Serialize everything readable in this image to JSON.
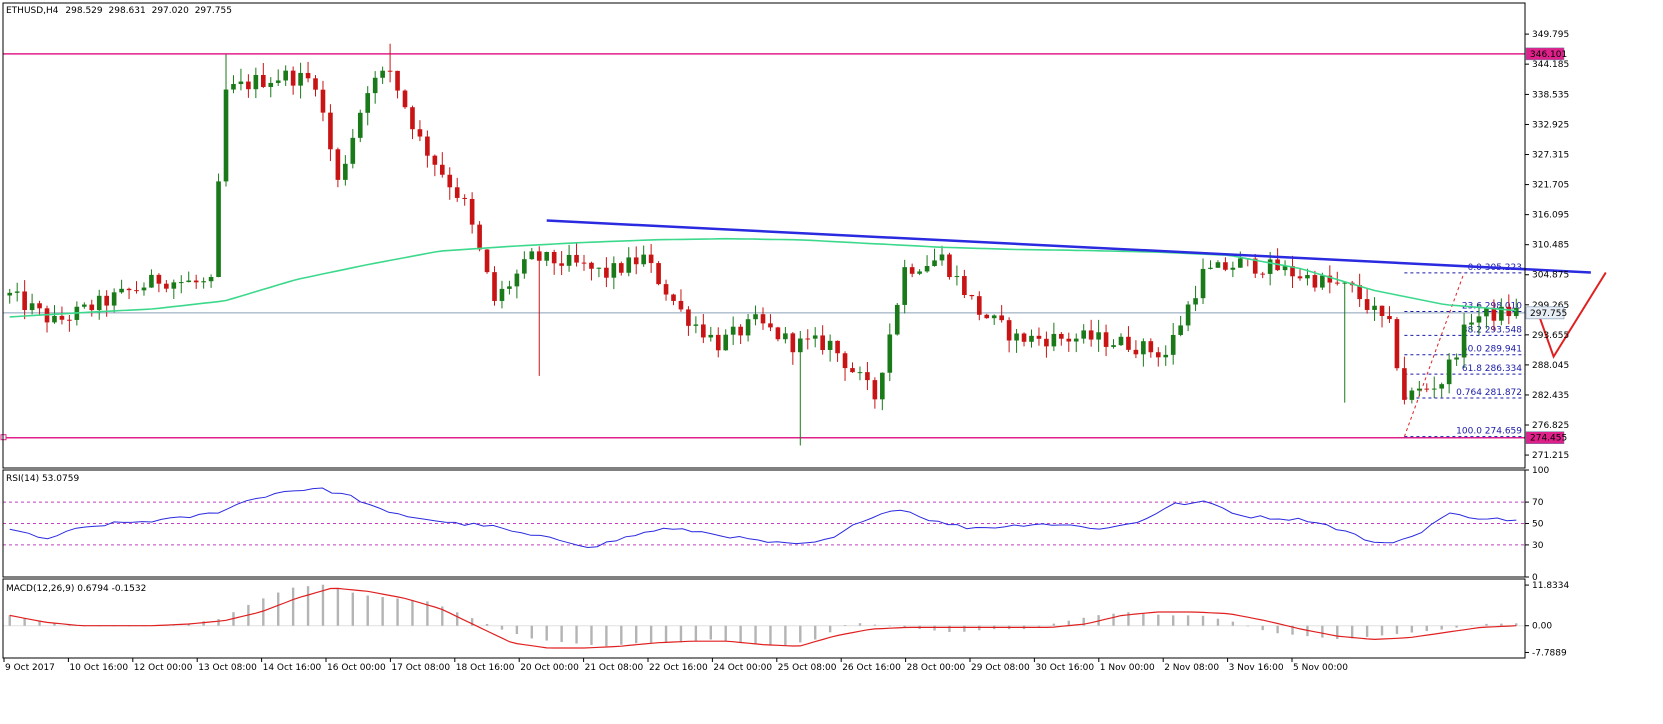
{
  "chart_data": [
    {
      "type": "candlestick",
      "title": "ETHUSD,H4",
      "ohlc_header": [
        "298.529",
        "298.631",
        "297.020",
        "297.755"
      ],
      "y_ticks": [
        "349.795",
        "344.185",
        "338.535",
        "332.925",
        "327.315",
        "321.705",
        "316.095",
        "310.485",
        "304.875",
        "299.265",
        "293.655",
        "288.045",
        "282.435",
        "276.825",
        "271.215"
      ],
      "ylim": [
        268.8,
        355.6
      ],
      "current_price": "297.755",
      "resistance_level": "346.101",
      "support_level": "274.455",
      "x_ticks": [
        "9 Oct 2017",
        "10 Oct 16:00",
        "12 Oct 00:00",
        "13 Oct 08:00",
        "14 Oct 16:00",
        "16 Oct 00:00",
        "17 Oct 08:00",
        "18 Oct 16:00",
        "20 Oct 00:00",
        "21 Oct 08:00",
        "22 Oct 16:00",
        "24 Oct 00:00",
        "25 Oct 08:00",
        "26 Oct 16:00",
        "28 Oct 00:00",
        "29 Oct 08:00",
        "30 Oct 16:00",
        "1 Nov 00:00",
        "2 Nov 08:00",
        "3 Nov 16:00",
        "5 Nov 00:00"
      ],
      "bar_count": 203,
      "close_anchors": [
        [
          0,
          301
        ],
        [
          6,
          296
        ],
        [
          13,
          300
        ],
        [
          20,
          304
        ],
        [
          27,
          303
        ],
        [
          29,
          339
        ],
        [
          33,
          341
        ],
        [
          37,
          342
        ],
        [
          41,
          341
        ],
        [
          44,
          322
        ],
        [
          48,
          340
        ],
        [
          51,
          343
        ],
        [
          55,
          330
        ],
        [
          58,
          324
        ],
        [
          61,
          318
        ],
        [
          65,
          300
        ],
        [
          70,
          308
        ],
        [
          75,
          307
        ],
        [
          80,
          305
        ],
        [
          85,
          308
        ],
        [
          90,
          298
        ],
        [
          95,
          292
        ],
        [
          100,
          296
        ],
        [
          105,
          292
        ],
        [
          110,
          292
        ],
        [
          116,
          282
        ],
        [
          120,
          306
        ],
        [
          125,
          308
        ],
        [
          130,
          298
        ],
        [
          135,
          293
        ],
        [
          140,
          293
        ],
        [
          145,
          293
        ],
        [
          150,
          292
        ],
        [
          155,
          290
        ],
        [
          160,
          305
        ],
        [
          165,
          307
        ],
        [
          170,
          306
        ],
        [
          175,
          304
        ],
        [
          180,
          302
        ],
        [
          185,
          295
        ],
        [
          187,
          282
        ],
        [
          192,
          285
        ],
        [
          196,
          297
        ],
        [
          202,
          298
        ]
      ],
      "extreme_bars": [
        [
          29,
          346
        ],
        [
          51,
          348
        ],
        [
          71,
          286
        ],
        [
          106,
          273
        ],
        [
          179,
          281
        ]
      ],
      "ma_values": [
        297.0,
        297.8,
        298.5,
        300.0,
        304.0,
        306.8,
        309.3,
        310.2,
        310.9,
        311.4,
        311.6,
        311.4,
        310.7,
        310.0,
        309.6,
        309.4,
        309.1,
        308.5,
        306.0,
        302.0,
        299.3,
        298.2
      ],
      "trendline": {
        "from": [
          72,
          315.0
        ],
        "to": [
          212,
          305.3
        ]
      },
      "fibonacci": [
        {
          "ratio": "0.0",
          "price": "305.223"
        },
        {
          "ratio": "23.6",
          "price": "298.010"
        },
        {
          "ratio": "38.2",
          "price": "293.548"
        },
        {
          "ratio": "50.0",
          "price": "289.941"
        },
        {
          "ratio": "61.8",
          "price": "286.334"
        },
        {
          "ratio": "0.764",
          "price": "281.872"
        },
        {
          "ratio": "100.0",
          "price": "274.659"
        }
      ],
      "projection": [
        [
          205,
          297.5
        ],
        [
          207,
          289.6
        ],
        [
          214,
          305.3
        ]
      ],
      "colors": {
        "bull": "#1a7a1a",
        "bear": "#c81414",
        "ma": "#3cd98c",
        "trend": "#2a2ae0",
        "level": "#e0208a",
        "fib": "#1a1aa8",
        "projection": "#e02020"
      }
    },
    {
      "type": "line",
      "title": "RSI(14) 53.0759",
      "y_ticks": [
        "100",
        "70",
        "50",
        "30",
        "0"
      ],
      "ylim": [
        0,
        100
      ],
      "levels": [
        70,
        50,
        30
      ],
      "rsi_values": [
        45,
        35,
        45,
        50,
        52,
        55,
        60,
        72,
        80,
        83,
        75,
        60,
        55,
        50,
        48,
        40,
        35,
        28,
        37,
        45,
        43,
        38,
        33,
        30,
        35,
        55,
        64,
        52,
        46,
        47,
        50,
        48,
        45,
        52,
        68,
        70,
        57,
        55,
        53,
        43,
        30,
        38,
        59,
        55,
        53
      ],
      "color": "#2a2ae0"
    },
    {
      "type": "bar",
      "title": "MACD(12,26,9) 0.6794 -0.1532",
      "y_ticks": [
        "11.8334",
        "0.00",
        "-7.7889"
      ],
      "ylim": [
        -9.4,
        13.6
      ],
      "hist_values": [
        3,
        1,
        0,
        0,
        0,
        0.5,
        2,
        7,
        11,
        12,
        9,
        8,
        7,
        3,
        -1,
        -4,
        -5,
        -6,
        -5,
        -5,
        -4,
        -5,
        -6,
        -4,
        1,
        0,
        -1,
        -2,
        -1,
        -1,
        1,
        3,
        4,
        3,
        3,
        1,
        -2,
        -3,
        -4,
        -3,
        -2,
        -1,
        0.5,
        0.7
      ],
      "signal_values": [
        3,
        1,
        0,
        0,
        0,
        0.5,
        1.5,
        4,
        8,
        11,
        10,
        8,
        5,
        0,
        -5,
        -6.5,
        -6.5,
        -6,
        -5,
        -4.5,
        -4.5,
        -5.5,
        -6,
        -3,
        -1,
        -0.5,
        -0.5,
        -0.5,
        -0.5,
        -0.5,
        0.5,
        3,
        4,
        4,
        3.5,
        1.5,
        -1,
        -3,
        -4,
        -3.5,
        -2,
        -0.5,
        0
      ],
      "colors": {
        "hist": "#b4b4b4",
        "signal": "#e02020"
      }
    }
  ]
}
